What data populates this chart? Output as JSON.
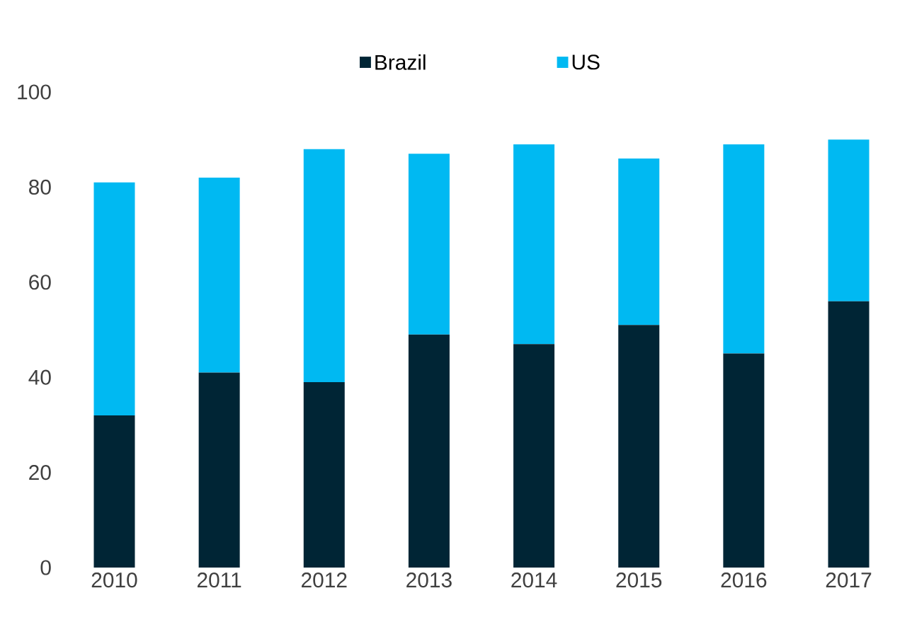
{
  "chart_data": {
    "type": "bar",
    "stacked": true,
    "categories": [
      "2010",
      "2011",
      "2012",
      "2013",
      "2014",
      "2015",
      "2016",
      "2017"
    ],
    "series": [
      {
        "name": "Brazil",
        "color": "#002535",
        "values": [
          32,
          41,
          39,
          49,
          47,
          51,
          45,
          56
        ]
      },
      {
        "name": "US",
        "color": "#00b9f2",
        "values": [
          49,
          41,
          49,
          38,
          42,
          35,
          44,
          34
        ]
      }
    ],
    "ylim": [
      0,
      100
    ],
    "yticks": [
      0,
      20,
      40,
      60,
      80,
      100
    ],
    "grid": false,
    "legend": "top"
  }
}
